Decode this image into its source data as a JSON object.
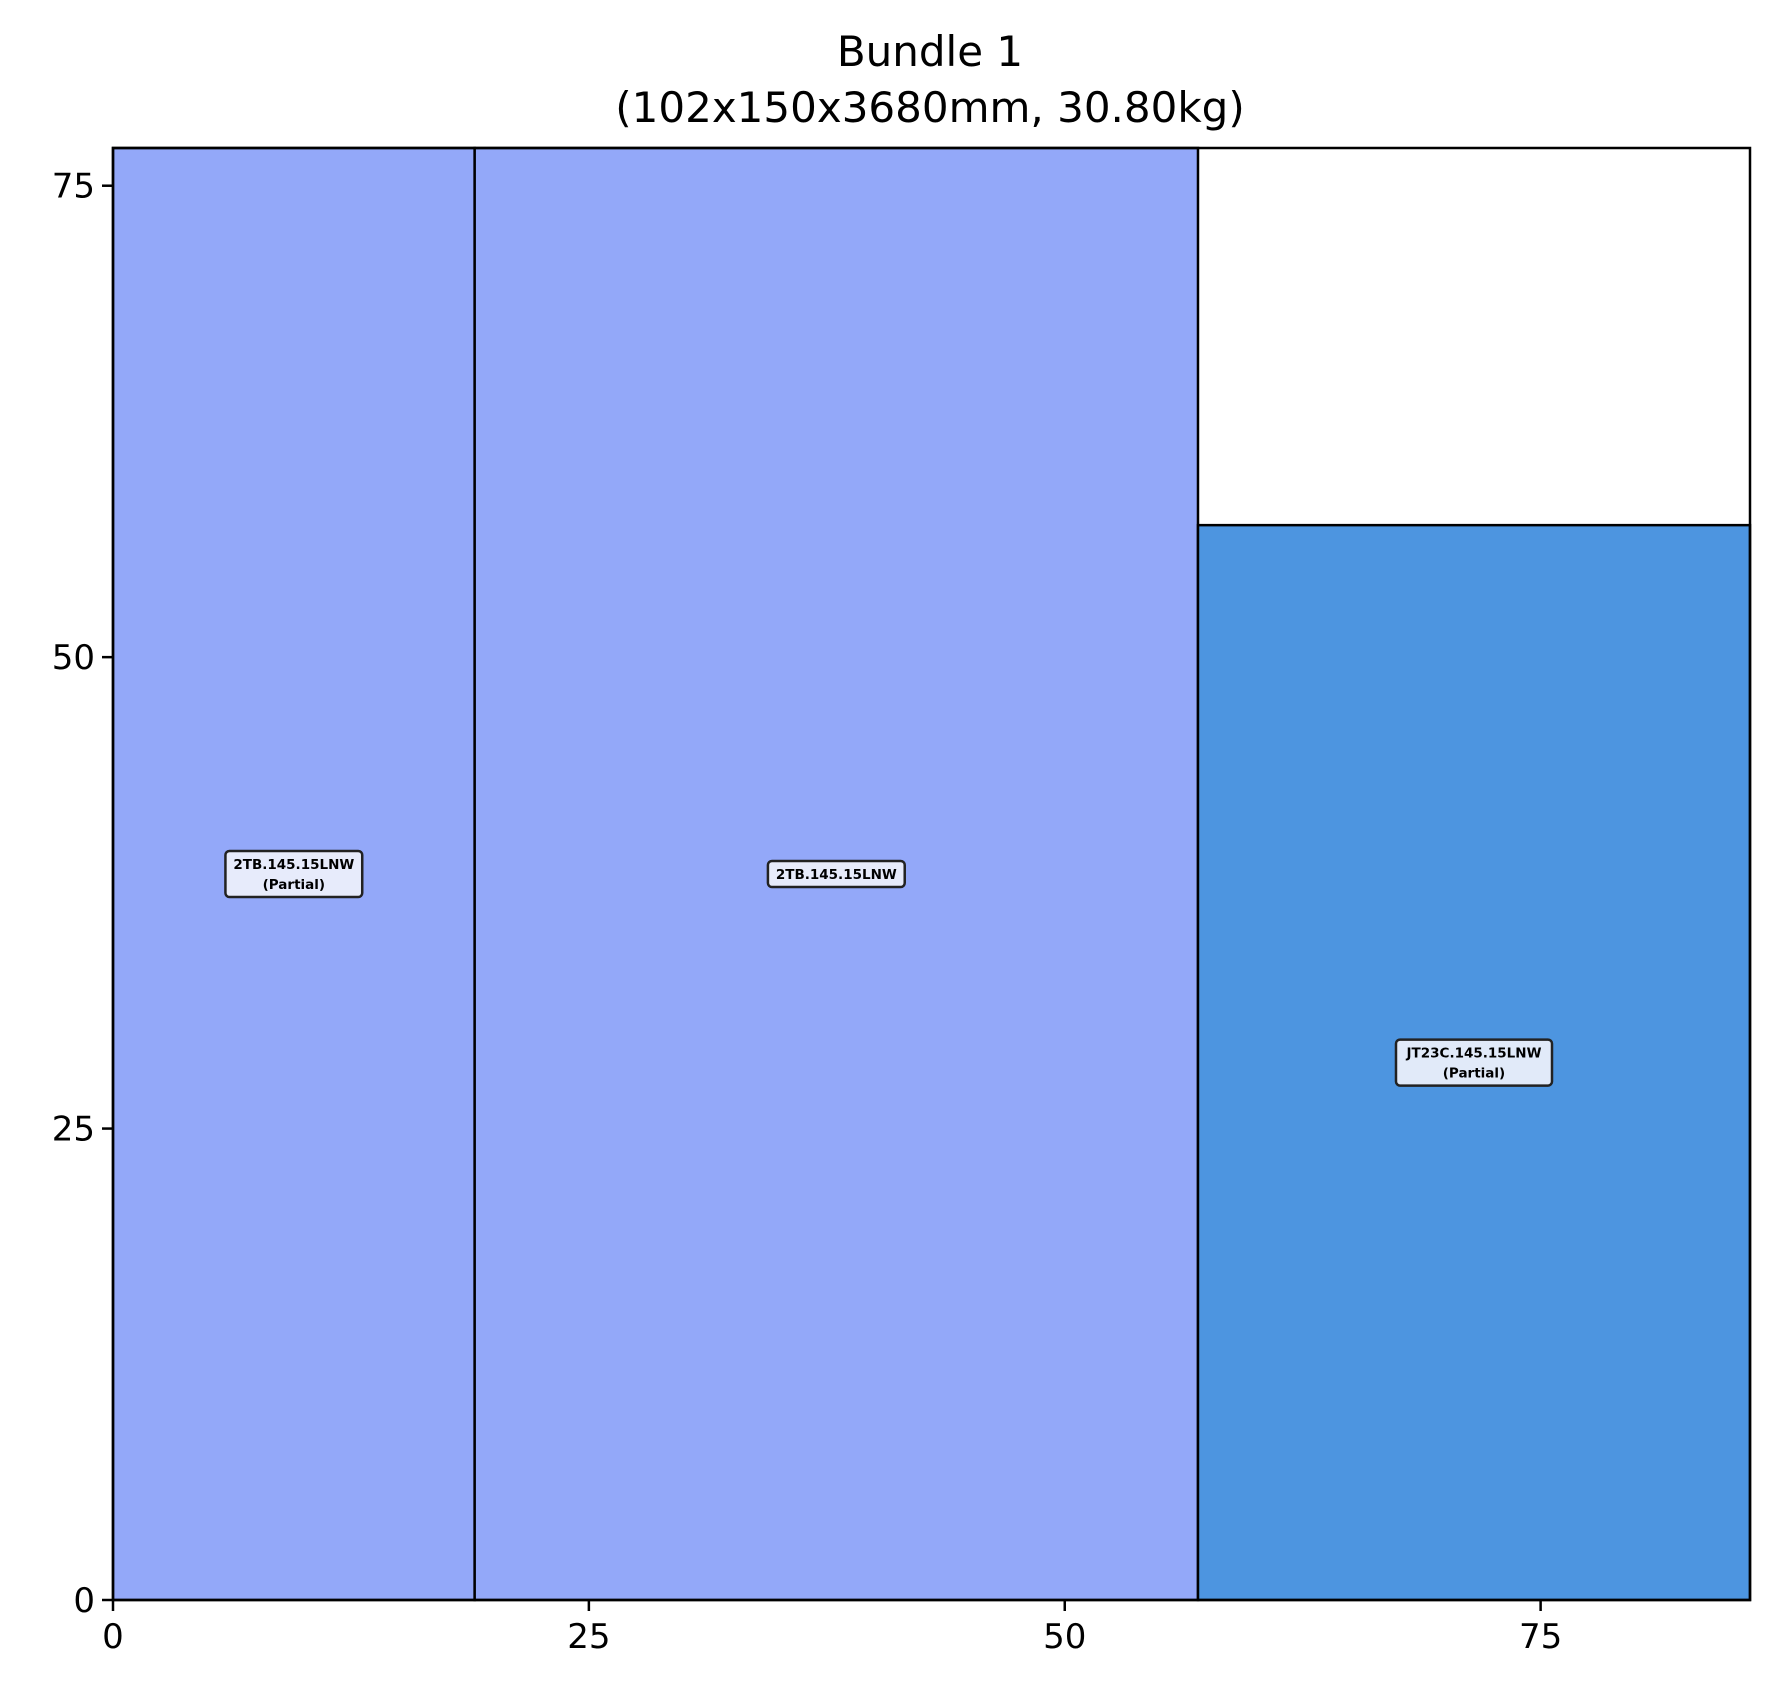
{
  "chart_data": {
    "type": "rectangle-packing",
    "title": "Bundle 1",
    "subtitle": "(102x150x3680mm, 30.80kg)",
    "xlabel": "",
    "ylabel": "",
    "xlim": [
      0,
      86
    ],
    "ylim": [
      0,
      77
    ],
    "xticks": [
      0,
      25,
      50,
      75
    ],
    "yticks": [
      0,
      25,
      50,
      75
    ],
    "grid": false,
    "rectangles": [
      {
        "label": "2TB.145.15LNW",
        "note": "(Partial)",
        "x": 0,
        "y": 0,
        "width": 19,
        "height": 77,
        "color": "#93a8f9"
      },
      {
        "label": "2TB.145.15LNW",
        "note": "",
        "x": 19,
        "y": 0,
        "width": 38,
        "height": 77,
        "color": "#93a8f9"
      },
      {
        "label": "JT23C.145.15LNW",
        "note": "(Partial)",
        "x": 57,
        "y": 0,
        "width": 29,
        "height": 57,
        "color": "#4d95e0"
      }
    ]
  }
}
